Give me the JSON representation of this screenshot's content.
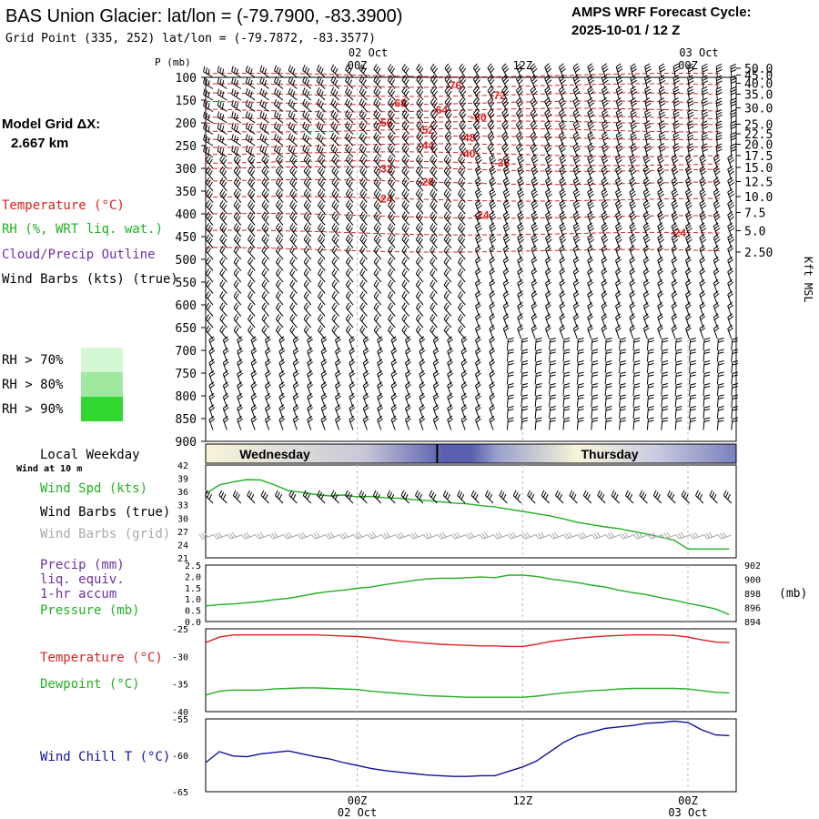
{
  "header": {
    "title": "BAS Union Glacier:  lat/lon = (-79.7900, -83.3900)",
    "grid_point": "Grid Point (335, 252) lat/lon = (-79.7872, -83.3577)",
    "cycle_label": "AMPS WRF Forecast Cycle:",
    "cycle_value": "2025-10-01 / 12  Z"
  },
  "left_panel": {
    "model_grid_label": "Model Grid ΔX:",
    "model_grid_value": "2.667 km",
    "legend": [
      {
        "label": "Temperature (°C)",
        "color": "#e02020"
      },
      {
        "label": "RH (%, WRT liq. wat.)",
        "color": "#20b020"
      },
      {
        "label": "Cloud/Precip Outline",
        "color": "#7030a0"
      },
      {
        "label": "Wind Barbs (kts) (true)",
        "color": "#000000"
      }
    ],
    "rh_legend": [
      {
        "label": "RH > 70%",
        "color": "#d4f8d4"
      },
      {
        "label": "RH > 80%",
        "color": "#a0e8a0"
      },
      {
        "label": "RH > 90%",
        "color": "#30d830"
      }
    ]
  },
  "colors": {
    "temp": "#e02020",
    "green": "#20b020",
    "blue": "#1010a0",
    "grid": "#bbbbbb",
    "barb": "#000000",
    "grid_barb": "#aaaaaa",
    "purple": "#7030a0",
    "day_dark": "#5a5fae",
    "day_light": "#f7f4d8"
  },
  "time_axis": {
    "top_date_labels": [
      {
        "label": "02 Oct",
        "x": 0
      },
      {
        "label": "03 Oct",
        "x": 24
      }
    ],
    "hour_labels": [
      {
        "label": "00Z",
        "x": 0
      },
      {
        "label": "12Z",
        "x": 12
      },
      {
        "label": "00Z",
        "x": 24
      }
    ],
    "bottom_hour_labels": [
      {
        "label": "00Z",
        "x": 0
      },
      {
        "label": "12Z",
        "x": 12
      },
      {
        "label": "00Z",
        "x": 24
      }
    ],
    "bottom_date_labels": [
      {
        "label": "02 Oct",
        "x": 0
      },
      {
        "label": "03 Oct",
        "x": 24
      }
    ]
  },
  "chart_data": [
    {
      "type": "contour",
      "name": "sounding-cross-section",
      "ylabel": "P (mb)",
      "right_label": "Kft MSL",
      "xlim": [
        -11,
        27.5
      ],
      "pressure_levels": [
        100,
        150,
        200,
        250,
        300,
        350,
        400,
        450,
        500,
        550,
        600,
        650,
        700,
        750,
        800,
        850,
        900
      ],
      "height_kft": [
        {
          "label": "50.0",
          "p": 80
        },
        {
          "label": "45.0",
          "p": 95
        },
        {
          "label": "40.0",
          "p": 113
        },
        {
          "label": "35.0",
          "p": 137
        },
        {
          "label": "30.0",
          "p": 167
        },
        {
          "label": "25.0",
          "p": 203
        },
        {
          "label": "22.5",
          "p": 224
        },
        {
          "label": "20.0",
          "p": 247
        },
        {
          "label": "17.5",
          "p": 272
        },
        {
          "label": "15.0",
          "p": 298
        },
        {
          "label": "12.5",
          "p": 329
        },
        {
          "label": "10.0",
          "p": 362
        },
        {
          "label": "7.5",
          "p": 397
        },
        {
          "label": "5.0",
          "p": 437
        },
        {
          "label": "2.50",
          "p": 484
        }
      ],
      "temp_labels": [
        {
          "label": "-76",
          "x": 7,
          "p": 118
        },
        {
          "label": "-72",
          "x": 10.2,
          "p": 140
        },
        {
          "label": "-68",
          "x": 3,
          "p": 157
        },
        {
          "label": "-64",
          "x": 6,
          "p": 172
        },
        {
          "label": "-60",
          "x": 8.8,
          "p": 188
        },
        {
          "label": "-56",
          "x": 2,
          "p": 200
        },
        {
          "label": "-52",
          "x": 5,
          "p": 216
        },
        {
          "label": "-48",
          "x": 8,
          "p": 233
        },
        {
          "label": "-44",
          "x": 5,
          "p": 250
        },
        {
          "label": "-40",
          "x": 8,
          "p": 268
        },
        {
          "label": "-36",
          "x": 10.5,
          "p": 288
        },
        {
          "label": "-32",
          "x": 2,
          "p": 301
        },
        {
          "label": "-28",
          "x": 5,
          "p": 330
        },
        {
          "label": "-24",
          "x": 2,
          "p": 367
        },
        {
          "label": "-24",
          "x": 9,
          "p": 403
        },
        {
          "label": "-24",
          "x": 23.3,
          "p": 442
        }
      ]
    },
    {
      "type": "line",
      "name": "wind-speed",
      "ylabel": "Wind Spd (kts)",
      "ylim": [
        21,
        42
      ],
      "yticks": [
        21,
        24,
        27,
        30,
        33,
        36,
        39,
        42
      ],
      "x": [
        -11,
        -10,
        -9,
        -8,
        -7,
        -6,
        -5,
        -4,
        -3,
        -2,
        -1,
        0,
        1,
        2,
        3,
        4,
        5,
        6,
        7,
        8,
        9,
        10,
        11,
        12,
        13,
        14,
        15,
        16,
        17,
        18,
        19,
        20,
        21,
        22,
        23,
        24,
        25,
        26,
        27
      ],
      "series": [
        {
          "name": "Wind Spd",
          "color": "#20b020",
          "values": [
            35.5,
            37.5,
            38.2,
            38.7,
            38.6,
            37.5,
            36.2,
            35.8,
            35.3,
            35.0,
            35.2,
            34.8,
            34.9,
            34.6,
            34.5,
            34.2,
            34.0,
            33.7,
            33.4,
            33.2,
            32.8,
            32.5,
            32.0,
            31.5,
            31.0,
            30.5,
            29.8,
            29.0,
            28.5,
            28.0,
            27.6,
            27.0,
            26.4,
            25.7,
            25.0,
            23.0,
            23.0,
            23.0,
            23.0
          ]
        }
      ]
    },
    {
      "type": "line",
      "name": "precip-pressure",
      "ylim_left": [
        0.0,
        2.5
      ],
      "yticks_left": [
        "2.5",
        "2.0",
        "1.5",
        "1.0",
        "0.5",
        "0.0"
      ],
      "ylim_right": [
        893.5,
        902.5
      ],
      "yticks_right": [
        "902",
        "900",
        "898",
        "896",
        "894"
      ],
      "right_unit": "(mb)",
      "x": [
        -11,
        -10,
        -9,
        -8,
        -7,
        -6,
        -5,
        -4,
        -3,
        -2,
        -1,
        0,
        1,
        2,
        3,
        4,
        5,
        6,
        7,
        8,
        9,
        10,
        11,
        12,
        13,
        14,
        15,
        16,
        17,
        18,
        19,
        20,
        21,
        22,
        23,
        24,
        25,
        26,
        27
      ],
      "series": [
        {
          "name": "Pressure (mb)",
          "color": "#20b020",
          "values": [
            896.0,
            896.2,
            896.3,
            896.5,
            896.7,
            897.0,
            897.2,
            897.6,
            898.0,
            898.3,
            898.5,
            898.8,
            899.0,
            899.4,
            899.7,
            900.0,
            900.3,
            900.4,
            900.4,
            900.5,
            900.6,
            900.5,
            900.9,
            900.9,
            900.7,
            900.3,
            900.0,
            899.7,
            899.3,
            899.0,
            898.5,
            898.1,
            897.8,
            897.3,
            896.9,
            896.4,
            896.0,
            895.5,
            894.6
          ]
        }
      ]
    },
    {
      "type": "line",
      "name": "temp-dewpoint",
      "ylim": [
        -40,
        -25
      ],
      "yticks": [
        -25,
        -30,
        -35,
        -40
      ],
      "x": [
        -11,
        -10,
        -9,
        -8,
        -7,
        -6,
        -5,
        -4,
        -3,
        -2,
        -1,
        0,
        1,
        2,
        3,
        4,
        5,
        6,
        7,
        8,
        9,
        10,
        11,
        12,
        13,
        14,
        15,
        16,
        17,
        18,
        19,
        20,
        21,
        22,
        23,
        24,
        25,
        26,
        27
      ],
      "series": [
        {
          "name": "Temperature (°C)",
          "color": "#e02020",
          "values": [
            -27.5,
            -26.5,
            -26.1,
            -26.1,
            -26.1,
            -26.1,
            -26.1,
            -26.1,
            -26.1,
            -26.2,
            -26.3,
            -26.4,
            -26.6,
            -26.9,
            -27.2,
            -27.4,
            -27.6,
            -27.8,
            -27.9,
            -28.0,
            -28.1,
            -28.1,
            -28.2,
            -28.2,
            -27.8,
            -27.3,
            -27.0,
            -26.7,
            -26.5,
            -26.3,
            -26.2,
            -26.1,
            -26.1,
            -26.1,
            -26.2,
            -26.5,
            -27.0,
            -27.4,
            -27.5
          ]
        },
        {
          "name": "Dewpoint (°C)",
          "color": "#20b020",
          "values": [
            -37.0,
            -36.3,
            -36.1,
            -36.1,
            -36.1,
            -35.9,
            -35.8,
            -35.7,
            -35.7,
            -35.8,
            -35.9,
            -36.0,
            -36.3,
            -36.5,
            -36.7,
            -36.9,
            -37.1,
            -37.2,
            -37.3,
            -37.4,
            -37.4,
            -37.4,
            -37.4,
            -37.4,
            -37.2,
            -36.9,
            -36.6,
            -36.4,
            -36.2,
            -36.1,
            -35.9,
            -35.8,
            -35.8,
            -35.8,
            -35.8,
            -35.9,
            -36.2,
            -36.5,
            -36.6
          ]
        }
      ]
    },
    {
      "type": "line",
      "name": "wind-chill",
      "ylim": [
        -65,
        -55
      ],
      "yticks": [
        -55,
        -60,
        -65
      ],
      "x": [
        -11,
        -10,
        -9,
        -8,
        -7,
        -6,
        -5,
        -4,
        -3,
        -2,
        -1,
        0,
        1,
        2,
        3,
        4,
        5,
        6,
        7,
        8,
        9,
        10,
        11,
        12,
        13,
        14,
        15,
        16,
        17,
        18,
        19,
        20,
        21,
        22,
        23,
        24,
        25,
        26,
        27
      ],
      "series": [
        {
          "name": "Wind Chill T (°C)",
          "color": "#1010a0",
          "values": [
            -61.0,
            -59.5,
            -60.1,
            -60.2,
            -59.8,
            -59.6,
            -59.4,
            -59.8,
            -60.2,
            -60.5,
            -61.0,
            -61.4,
            -61.8,
            -62.1,
            -62.3,
            -62.5,
            -62.7,
            -62.8,
            -62.9,
            -62.9,
            -62.8,
            -62.8,
            -62.2,
            -61.6,
            -60.8,
            -59.5,
            -58.2,
            -57.3,
            -56.8,
            -56.3,
            -56.1,
            -55.9,
            -55.6,
            -55.5,
            -55.3,
            -55.5,
            -56.5,
            -57.2,
            -57.3
          ]
        }
      ]
    }
  ],
  "day_bar": {
    "left": "Wednesday",
    "right": "Thursday",
    "local_label": "Local Weekday",
    "divider_x": 5.8
  },
  "surface_labels": {
    "wind_at": "Wind at 10 m",
    "wind_spd": "Wind Spd (kts)",
    "barbs_true": "Wind Barbs (true)",
    "barbs_grid": "Wind Barbs (grid)",
    "precip": "Precip (mm)",
    "liq_equiv": "liq. equiv.",
    "accum": "1-hr accum",
    "pressure": "Pressure (mb)",
    "temperature": "Temperature (°C)",
    "dewpoint": "Dewpoint (°C)",
    "wind_chill": "Wind Chill T (°C)"
  }
}
